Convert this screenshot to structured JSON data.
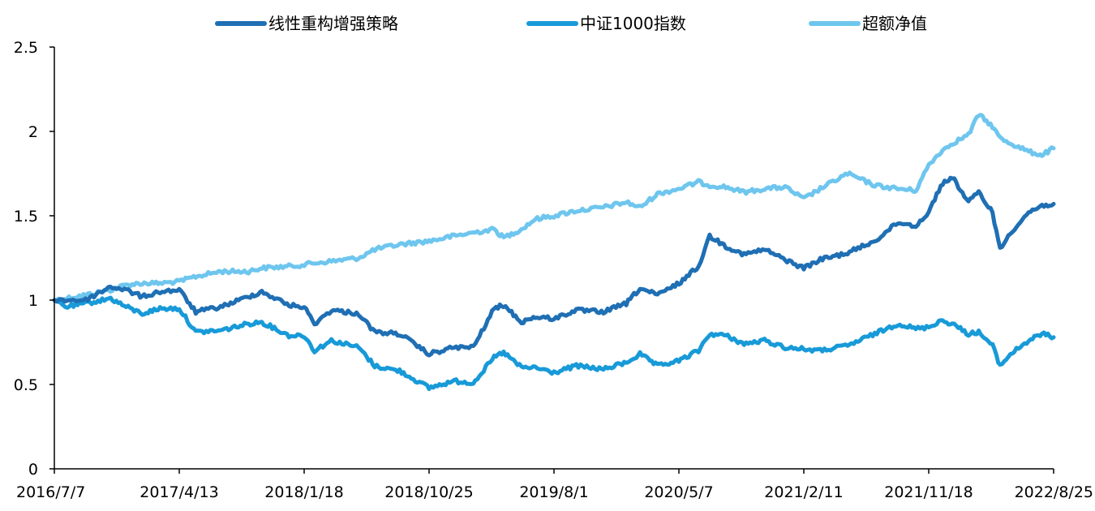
{
  "chart_data": {
    "type": "line",
    "title": "",
    "xlabel": "",
    "ylabel": "",
    "ylim": [
      0,
      2.5
    ],
    "y_ticks": [
      "0",
      "0.5",
      "1",
      "1.5",
      "2",
      "2.5"
    ],
    "x_ticks": [
      "2016/7/7",
      "2017/4/13",
      "2018/1/18",
      "2018/10/25",
      "2019/8/1",
      "2020/5/7",
      "2021/2/11",
      "2021/11/18",
      "2022/8/25"
    ],
    "grid": false,
    "legend": "top",
    "series": [
      {
        "name": "线性重构增强策略",
        "color": "#1f6fb4",
        "points": [
          [
            "2016/7/7",
            1.0
          ],
          [
            "2016/9/15",
            1.0
          ],
          [
            "2016/11/10",
            1.08
          ],
          [
            "2016/12/15",
            1.06
          ],
          [
            "2017/1/20",
            1.02
          ],
          [
            "2017/3/1",
            1.05
          ],
          [
            "2017/4/13",
            1.06
          ],
          [
            "2017/5/20",
            0.93
          ],
          [
            "2017/7/15",
            0.96
          ],
          [
            "2017/9/15",
            1.02
          ],
          [
            "2017/10/15",
            1.05
          ],
          [
            "2017/12/15",
            0.97
          ],
          [
            "2018/1/18",
            0.96
          ],
          [
            "2018/2/10",
            0.86
          ],
          [
            "2018/3/20",
            0.94
          ],
          [
            "2018/5/20",
            0.92
          ],
          [
            "2018/6/25",
            0.81
          ],
          [
            "2018/8/20",
            0.8
          ],
          [
            "2018/10/25",
            0.68
          ],
          [
            "2018/12/20",
            0.72
          ],
          [
            "2019/2/1",
            0.72
          ],
          [
            "2019/3/20",
            0.95
          ],
          [
            "2019/4/10",
            0.97
          ],
          [
            "2019/5/20",
            0.87
          ],
          [
            "2019/6/20",
            0.9
          ],
          [
            "2019/8/1",
            0.89
          ],
          [
            "2019/9/20",
            0.94
          ],
          [
            "2019/11/20",
            0.93
          ],
          [
            "2020/1/10",
            0.98
          ],
          [
            "2020/2/10",
            1.07
          ],
          [
            "2020/3/20",
            1.03
          ],
          [
            "2020/5/7",
            1.1
          ],
          [
            "2020/6/20",
            1.2
          ],
          [
            "2020/7/15",
            1.38
          ],
          [
            "2020/8/20",
            1.32
          ],
          [
            "2020/9/30",
            1.27
          ],
          [
            "2020/11/15",
            1.3
          ],
          [
            "2020/12/31",
            1.24
          ],
          [
            "2021/2/11",
            1.19
          ],
          [
            "2021/3/20",
            1.24
          ],
          [
            "2021/5/20",
            1.28
          ],
          [
            "2021/7/20",
            1.35
          ],
          [
            "2021/9/10",
            1.46
          ],
          [
            "2021/10/20",
            1.44
          ],
          [
            "2021/11/18",
            1.52
          ],
          [
            "2021/12/15",
            1.68
          ],
          [
            "2022/1/10",
            1.73
          ],
          [
            "2022/2/15",
            1.58
          ],
          [
            "2022/3/10",
            1.64
          ],
          [
            "2022/4/10",
            1.52
          ],
          [
            "2022/4/27",
            1.3
          ],
          [
            "2022/5/20",
            1.4
          ],
          [
            "2022/6/30",
            1.52
          ],
          [
            "2022/7/30",
            1.56
          ],
          [
            "2022/8/25",
            1.57
          ]
        ]
      },
      {
        "name": "中证1000指数",
        "color": "#189ad8",
        "points": [
          [
            "2016/7/7",
            1.0
          ],
          [
            "2016/8/1",
            0.96
          ],
          [
            "2016/9/15",
            0.98
          ],
          [
            "2016/11/10",
            1.01
          ],
          [
            "2016/12/15",
            0.96
          ],
          [
            "2017/1/20",
            0.92
          ],
          [
            "2017/3/1",
            0.95
          ],
          [
            "2017/4/13",
            0.95
          ],
          [
            "2017/5/20",
            0.81
          ],
          [
            "2017/7/15",
            0.82
          ],
          [
            "2017/9/15",
            0.86
          ],
          [
            "2017/10/15",
            0.87
          ],
          [
            "2017/12/15",
            0.79
          ],
          [
            "2018/1/18",
            0.79
          ],
          [
            "2018/2/10",
            0.7
          ],
          [
            "2018/3/20",
            0.76
          ],
          [
            "2018/5/20",
            0.72
          ],
          [
            "2018/6/25",
            0.61
          ],
          [
            "2018/8/20",
            0.58
          ],
          [
            "2018/10/25",
            0.48
          ],
          [
            "2018/12/20",
            0.52
          ],
          [
            "2019/2/1",
            0.51
          ],
          [
            "2019/3/20",
            0.66
          ],
          [
            "2019/4/10",
            0.69
          ],
          [
            "2019/5/20",
            0.6
          ],
          [
            "2019/6/20",
            0.6
          ],
          [
            "2019/8/1",
            0.57
          ],
          [
            "2019/9/20",
            0.61
          ],
          [
            "2019/11/20",
            0.59
          ],
          [
            "2020/1/10",
            0.63
          ],
          [
            "2020/2/10",
            0.68
          ],
          [
            "2020/3/20",
            0.61
          ],
          [
            "2020/5/7",
            0.64
          ],
          [
            "2020/6/20",
            0.7
          ],
          [
            "2020/7/15",
            0.8
          ],
          [
            "2020/8/20",
            0.79
          ],
          [
            "2020/9/30",
            0.74
          ],
          [
            "2020/11/15",
            0.76
          ],
          [
            "2020/12/31",
            0.72
          ],
          [
            "2021/2/11",
            0.71
          ],
          [
            "2021/3/20",
            0.7
          ],
          [
            "2021/5/20",
            0.73
          ],
          [
            "2021/7/20",
            0.8
          ],
          [
            "2021/9/10",
            0.86
          ],
          [
            "2021/10/20",
            0.83
          ],
          [
            "2021/11/18",
            0.84
          ],
          [
            "2021/12/15",
            0.88
          ],
          [
            "2022/1/10",
            0.86
          ],
          [
            "2022/2/15",
            0.8
          ],
          [
            "2022/3/10",
            0.81
          ],
          [
            "2022/4/10",
            0.73
          ],
          [
            "2022/4/27",
            0.61
          ],
          [
            "2022/5/20",
            0.68
          ],
          [
            "2022/6/30",
            0.76
          ],
          [
            "2022/7/30",
            0.8
          ],
          [
            "2022/8/25",
            0.78
          ]
        ]
      },
      {
        "name": "超额净值",
        "color": "#6ec6ee",
        "points": [
          [
            "2016/7/7",
            1.0
          ],
          [
            "2016/9/15",
            1.03
          ],
          [
            "2016/11/10",
            1.06
          ],
          [
            "2016/12/15",
            1.09
          ],
          [
            "2017/1/20",
            1.1
          ],
          [
            "2017/3/1",
            1.1
          ],
          [
            "2017/4/13",
            1.11
          ],
          [
            "2017/5/20",
            1.14
          ],
          [
            "2017/7/15",
            1.17
          ],
          [
            "2017/9/15",
            1.17
          ],
          [
            "2017/10/15",
            1.19
          ],
          [
            "2017/12/15",
            1.2
          ],
          [
            "2018/1/18",
            1.21
          ],
          [
            "2018/2/10",
            1.22
          ],
          [
            "2018/3/20",
            1.23
          ],
          [
            "2018/5/20",
            1.25
          ],
          [
            "2018/6/25",
            1.3
          ],
          [
            "2018/8/20",
            1.33
          ],
          [
            "2018/10/25",
            1.35
          ],
          [
            "2018/12/20",
            1.38
          ],
          [
            "2019/2/1",
            1.4
          ],
          [
            "2019/3/20",
            1.42
          ],
          [
            "2019/4/10",
            1.37
          ],
          [
            "2019/5/20",
            1.42
          ],
          [
            "2019/6/20",
            1.48
          ],
          [
            "2019/8/1",
            1.5
          ],
          [
            "2019/9/20",
            1.53
          ],
          [
            "2019/11/20",
            1.55
          ],
          [
            "2020/1/10",
            1.58
          ],
          [
            "2020/2/10",
            1.55
          ],
          [
            "2020/3/20",
            1.63
          ],
          [
            "2020/5/7",
            1.66
          ],
          [
            "2020/6/20",
            1.7
          ],
          [
            "2020/7/15",
            1.68
          ],
          [
            "2020/8/20",
            1.67
          ],
          [
            "2020/9/30",
            1.64
          ],
          [
            "2020/11/15",
            1.66
          ],
          [
            "2020/12/31",
            1.67
          ],
          [
            "2021/2/11",
            1.6
          ],
          [
            "2021/3/20",
            1.66
          ],
          [
            "2021/5/20",
            1.75
          ],
          [
            "2021/7/20",
            1.68
          ],
          [
            "2021/9/10",
            1.66
          ],
          [
            "2021/10/20",
            1.65
          ],
          [
            "2021/11/18",
            1.8
          ],
          [
            "2021/12/15",
            1.88
          ],
          [
            "2022/1/10",
            1.93
          ],
          [
            "2022/2/15",
            1.98
          ],
          [
            "2022/3/10",
            2.1
          ],
          [
            "2022/4/10",
            2.03
          ],
          [
            "2022/4/27",
            1.96
          ],
          [
            "2022/5/20",
            1.93
          ],
          [
            "2022/6/30",
            1.88
          ],
          [
            "2022/7/30",
            1.86
          ],
          [
            "2022/8/25",
            1.9
          ]
        ]
      }
    ]
  }
}
